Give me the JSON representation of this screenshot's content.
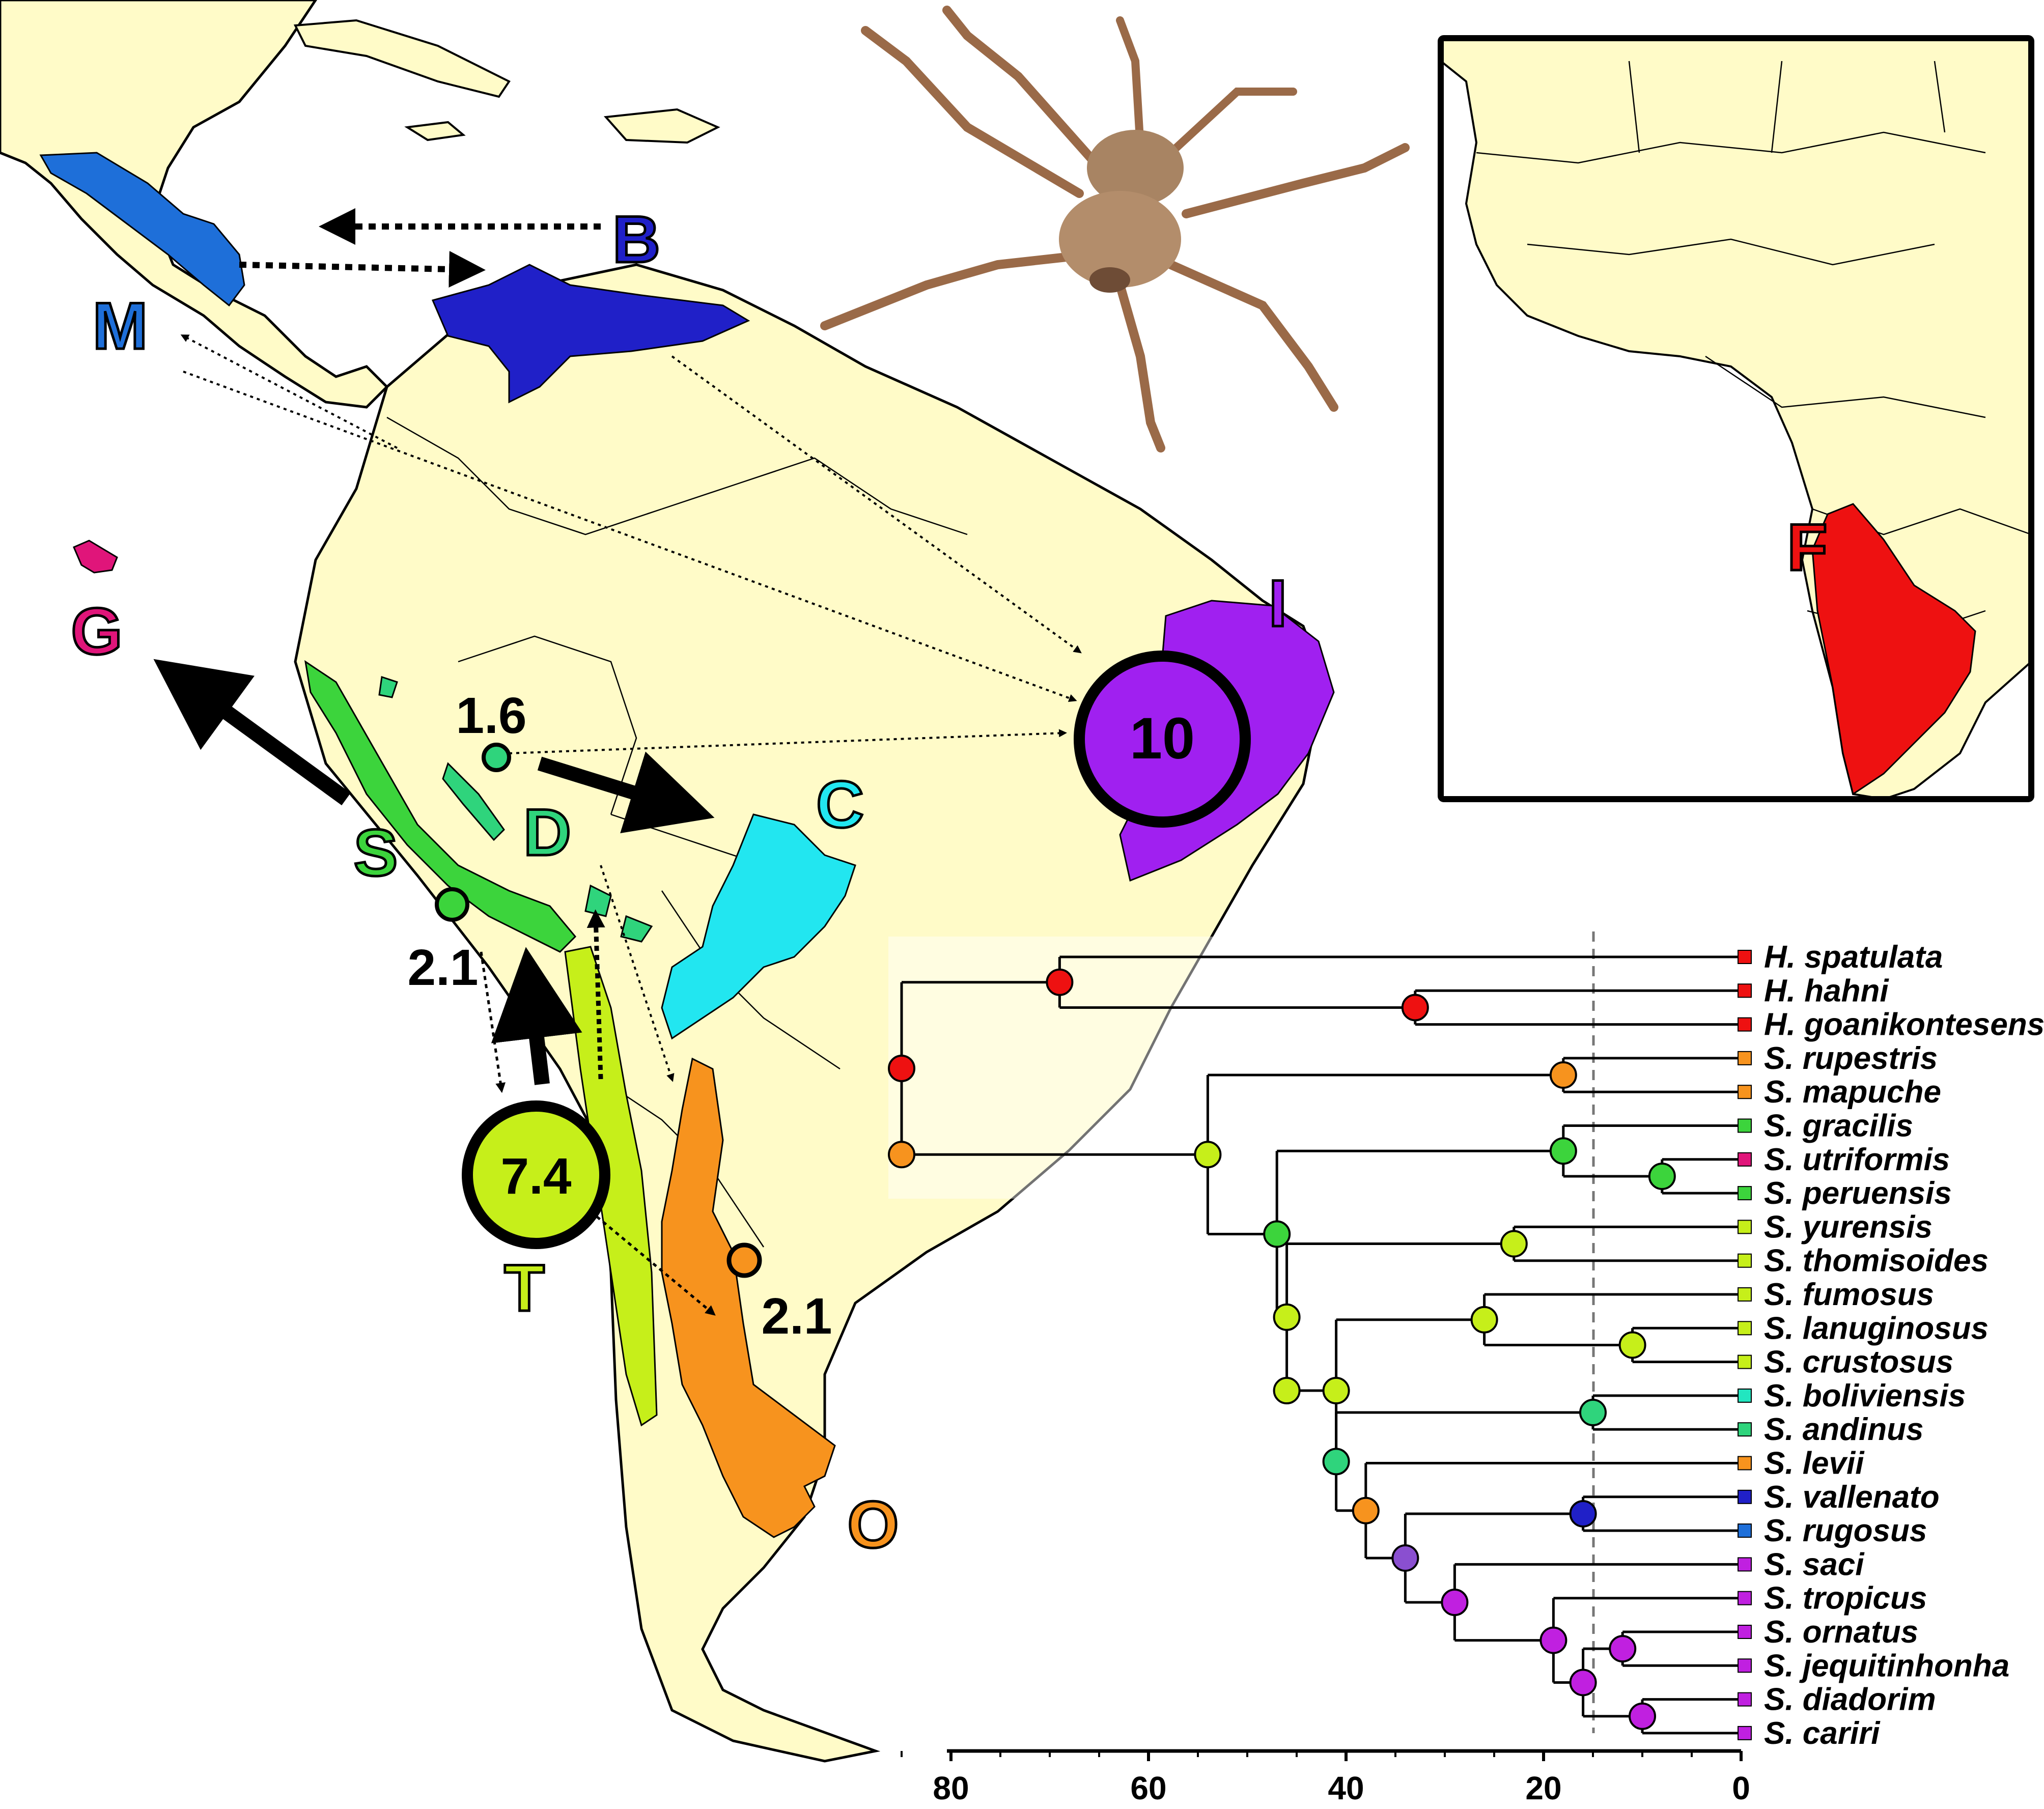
{
  "regions": [
    {
      "code": "M",
      "color": "#1e6fd9"
    },
    {
      "code": "B",
      "color": "#2020c8"
    },
    {
      "code": "G",
      "color": "#e0157a"
    },
    {
      "code": "I",
      "color": "#a020f0"
    },
    {
      "code": "C",
      "color": "#22e6f0"
    },
    {
      "code": "D",
      "color": "#2fd47c"
    },
    {
      "code": "S",
      "color": "#3cd43c"
    },
    {
      "code": "T",
      "color": "#c6ef1a"
    },
    {
      "code": "O",
      "color": "#f7931e"
    },
    {
      "code": "F",
      "color": "#ee1111"
    }
  ],
  "diversity_values": {
    "I": "10",
    "T": "7.4",
    "D": "1.6",
    "S": "2.1",
    "O": "2.1"
  },
  "tree": {
    "tips": [
      {
        "name": "H. spatulata",
        "color": "#ee1111"
      },
      {
        "name": "H. hahni",
        "color": "#ee1111"
      },
      {
        "name": "H. goanikontesensis",
        "color": "#ee1111"
      },
      {
        "name": "S. rupestris",
        "color": "#f7931e"
      },
      {
        "name": "S. mapuche",
        "color": "#f7931e"
      },
      {
        "name": "S. gracilis",
        "color": "#3cd43c"
      },
      {
        "name": "S. utriformis",
        "color": "#e0157a"
      },
      {
        "name": "S. peruensis",
        "color": "#3cd43c"
      },
      {
        "name": "S. yurensis",
        "color": "#c6ef1a"
      },
      {
        "name": "S. thomisoides",
        "color": "#c6ef1a"
      },
      {
        "name": "S. fumosus",
        "color": "#c6ef1a"
      },
      {
        "name": "S. lanuginosus",
        "color": "#c6ef1a"
      },
      {
        "name": "S. crustosus",
        "color": "#c6ef1a"
      },
      {
        "name": "S. boliviensis",
        "color": "#22e6c0"
      },
      {
        "name": "S. andinus",
        "color": "#2fd47c"
      },
      {
        "name": "S. levii",
        "color": "#f7931e"
      },
      {
        "name": "S. vallenato",
        "color": "#2020c8"
      },
      {
        "name": "S. rugosus",
        "color": "#1e6fd9"
      },
      {
        "name": "S. saci",
        "color": "#c020e0"
      },
      {
        "name": "S. tropicus",
        "color": "#c020e0"
      },
      {
        "name": "S. ornatus",
        "color": "#c020e0"
      },
      {
        "name": "S. jequitinhonha",
        "color": "#c020e0"
      },
      {
        "name": "S. diadorim",
        "color": "#c020e0"
      },
      {
        "name": "S. cariri",
        "color": "#c020e0"
      }
    ],
    "axis_ticks": [
      "80",
      "60",
      "40",
      "20",
      "0"
    ],
    "axis_unit": "",
    "dashed_line_age": 15
  }
}
